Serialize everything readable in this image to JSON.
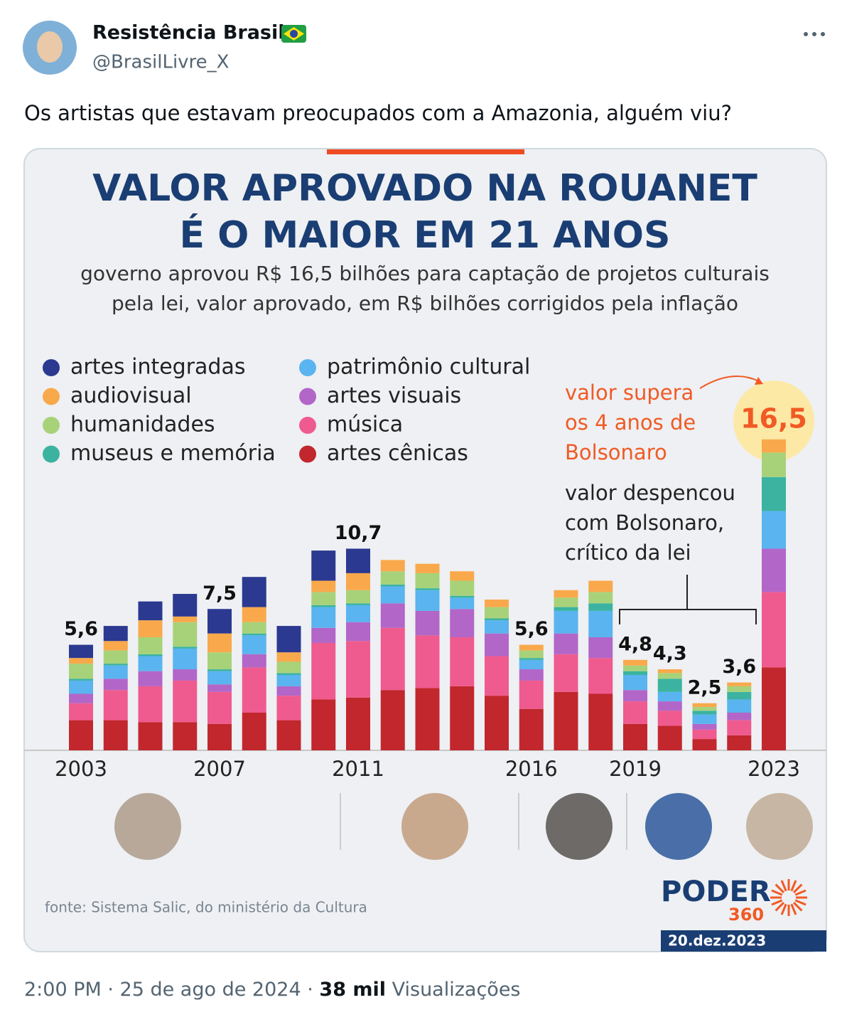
{
  "tweet": {
    "author": "Resistência Brasil",
    "handle": "@BrasilLivre_X",
    "text": "Os artistas que estavam preocupados com a Amazonia, alguém viu?",
    "date_line": "2:00 PM · 25 de ago de 2024 ·",
    "views": "38 mil",
    "views_label": "Visualizações"
  },
  "chart_data": {
    "type": "stacked_bar",
    "title": [
      "VALOR APROVADO NA ROUANET",
      "É O MAIOR EM 21 ANOS"
    ],
    "subtitle": [
      "governo aprovou R$ 16,5 bilhões para captação de projetos culturais",
      "pela lei, valor aprovado, em R$ bilhões corrigidos pela inflação"
    ],
    "categories": [
      "2003",
      null,
      null,
      null,
      "2007",
      null,
      null,
      null,
      "2011",
      null,
      null,
      null,
      null,
      "2016",
      null,
      null,
      "2019",
      null,
      null,
      null,
      "2023"
    ],
    "series": [
      {
        "name": "artes integradas",
        "color": "#2b3990",
        "values": [
          0.7,
          0.8,
          1.0,
          1.2,
          1.3,
          1.6,
          1.4,
          1.6,
          1.3,
          0,
          0,
          0,
          0,
          0,
          0,
          0,
          0,
          0,
          0,
          0,
          0
        ]
      },
      {
        "name": "audiovisual",
        "color": "#f9a94b",
        "values": [
          0.3,
          0.5,
          0.9,
          0.3,
          1.0,
          0.8,
          0.5,
          0.6,
          0.9,
          0.6,
          0.5,
          0.5,
          0.4,
          0.3,
          0.4,
          0.6,
          0.3,
          0.2,
          0.2,
          0.2,
          0.7
        ]
      },
      {
        "name": "humanidades",
        "color": "#a8d27a",
        "values": [
          0.8,
          0.7,
          0.9,
          1.3,
          0.9,
          0.6,
          0.6,
          0.7,
          0.7,
          0.7,
          0.8,
          0.8,
          0.6,
          0.4,
          0.5,
          0.6,
          0.3,
          0.3,
          0.2,
          0.3,
          1.3
        ]
      },
      {
        "name": "museus e memória",
        "color": "#3bb3a0",
        "values": [
          0.1,
          0.1,
          0.1,
          0.1,
          0.1,
          0.1,
          0.1,
          0.1,
          0.1,
          0.1,
          0.1,
          0.1,
          0.1,
          0.1,
          0.2,
          0.4,
          0.2,
          0.7,
          0.2,
          0.4,
          1.8
        ]
      },
      {
        "name": "patrimônio cultural",
        "color": "#5ab4ef",
        "values": [
          0.7,
          0.7,
          0.8,
          1.1,
          0.7,
          1.0,
          0.6,
          1.1,
          0.9,
          0.9,
          1.1,
          0.6,
          0.7,
          0.5,
          1.2,
          1.4,
          0.8,
          0.5,
          0.5,
          0.7,
          2.0
        ]
      },
      {
        "name": "artes visuais",
        "color": "#b266c8",
        "values": [
          0.5,
          0.6,
          0.8,
          0.6,
          0.4,
          0.7,
          0.5,
          0.8,
          1.0,
          1.3,
          1.3,
          1.5,
          1.2,
          0.6,
          1.1,
          1.1,
          0.6,
          0.5,
          0.3,
          0.4,
          2.3
        ]
      },
      {
        "name": "música",
        "color": "#ef5b8e",
        "values": [
          0.9,
          1.6,
          1.9,
          2.2,
          1.7,
          2.4,
          1.3,
          3.0,
          3.0,
          3.3,
          2.8,
          2.6,
          2.1,
          1.5,
          2.0,
          1.9,
          1.2,
          0.8,
          0.5,
          0.8,
          4.0
        ]
      },
      {
        "name": "artes cênicas",
        "color": "#c1272d",
        "values": [
          1.6,
          1.6,
          1.5,
          1.5,
          1.4,
          2.0,
          1.6,
          2.7,
          2.8,
          3.2,
          3.3,
          3.4,
          2.9,
          2.2,
          3.1,
          3.0,
          1.4,
          1.3,
          0.6,
          0.8,
          4.4
        ]
      }
    ],
    "totals": [
      5.6,
      null,
      null,
      null,
      7.5,
      null,
      null,
      null,
      10.7,
      null,
      null,
      null,
      null,
      5.6,
      null,
      null,
      4.8,
      4.3,
      2.5,
      3.6,
      16.5
    ],
    "total_labels": [
      "5,6",
      null,
      null,
      null,
      "7,5",
      null,
      null,
      null,
      "10,7",
      null,
      null,
      null,
      null,
      "5,6",
      null,
      null,
      "4,8",
      "4,3",
      "2,5",
      "3,6",
      "16,5"
    ],
    "ylim": [
      0,
      17
    ],
    "annotations": [
      [
        "valor supera",
        "os 4 anos de",
        "Bolsonaro"
      ],
      [
        "valor despencou",
        "com Bolsonaro,",
        "crítico da lei"
      ]
    ],
    "source": "fonte: Sistema Salic, do ministério da Cultura"
  },
  "brand": {
    "name": "PODER",
    "number": "360",
    "date": "20.dez.2023"
  }
}
